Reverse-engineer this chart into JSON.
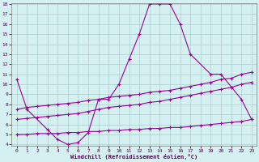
{
  "xlabel": "Windchill (Refroidissement éolien,°C)",
  "bg_color": "#d4f0f0",
  "grid_color": "#aacece",
  "line_color": "#990099",
  "series1_x": [
    0,
    1,
    3,
    4,
    5,
    6,
    7,
    8,
    9,
    10,
    11,
    12,
    13,
    14,
    15,
    16,
    17,
    19,
    20,
    22,
    23
  ],
  "series1_y": [
    10.5,
    7.5,
    5.5,
    4.5,
    4.0,
    4.2,
    5.2,
    8.5,
    8.5,
    10.0,
    12.5,
    15.0,
    18.0,
    18.0,
    18.0,
    16.0,
    13.0,
    11.0,
    11.0,
    8.5,
    6.5
  ],
  "series2_x": [
    0,
    1,
    2,
    3,
    4,
    5,
    6,
    7,
    8,
    9,
    10,
    11,
    12,
    13,
    14,
    15,
    16,
    17,
    18,
    19,
    20,
    21,
    22,
    23
  ],
  "series2_y": [
    7.5,
    7.7,
    7.8,
    7.9,
    8.0,
    8.1,
    8.2,
    8.4,
    8.5,
    8.7,
    8.8,
    8.9,
    9.0,
    9.2,
    9.3,
    9.4,
    9.6,
    9.8,
    10.0,
    10.2,
    10.5,
    10.6,
    11.0,
    11.2
  ],
  "series3_x": [
    0,
    1,
    2,
    3,
    4,
    5,
    6,
    7,
    8,
    9,
    10,
    11,
    12,
    13,
    14,
    15,
    16,
    17,
    18,
    19,
    20,
    21,
    22,
    23
  ],
  "series3_y": [
    6.5,
    6.6,
    6.7,
    6.8,
    6.9,
    7.0,
    7.1,
    7.3,
    7.5,
    7.7,
    7.8,
    7.9,
    8.0,
    8.2,
    8.3,
    8.5,
    8.7,
    8.9,
    9.1,
    9.3,
    9.5,
    9.7,
    10.0,
    10.2
  ],
  "series4_x": [
    0,
    1,
    2,
    3,
    4,
    5,
    6,
    7,
    8,
    9,
    10,
    11,
    12,
    13,
    14,
    15,
    16,
    17,
    18,
    19,
    20,
    21,
    22,
    23
  ],
  "series4_y": [
    5.0,
    5.0,
    5.1,
    5.1,
    5.1,
    5.2,
    5.2,
    5.3,
    5.3,
    5.4,
    5.4,
    5.5,
    5.5,
    5.6,
    5.6,
    5.7,
    5.7,
    5.8,
    5.9,
    6.0,
    6.1,
    6.2,
    6.3,
    6.5
  ],
  "ylim": [
    4,
    18
  ],
  "yticks": [
    4,
    5,
    6,
    7,
    8,
    9,
    10,
    11,
    12,
    13,
    14,
    15,
    16,
    17,
    18
  ],
  "xlim": [
    0,
    23
  ],
  "xticks": [
    0,
    1,
    2,
    3,
    4,
    5,
    6,
    7,
    8,
    9,
    10,
    11,
    12,
    13,
    14,
    15,
    16,
    17,
    18,
    19,
    20,
    21,
    22,
    23
  ]
}
